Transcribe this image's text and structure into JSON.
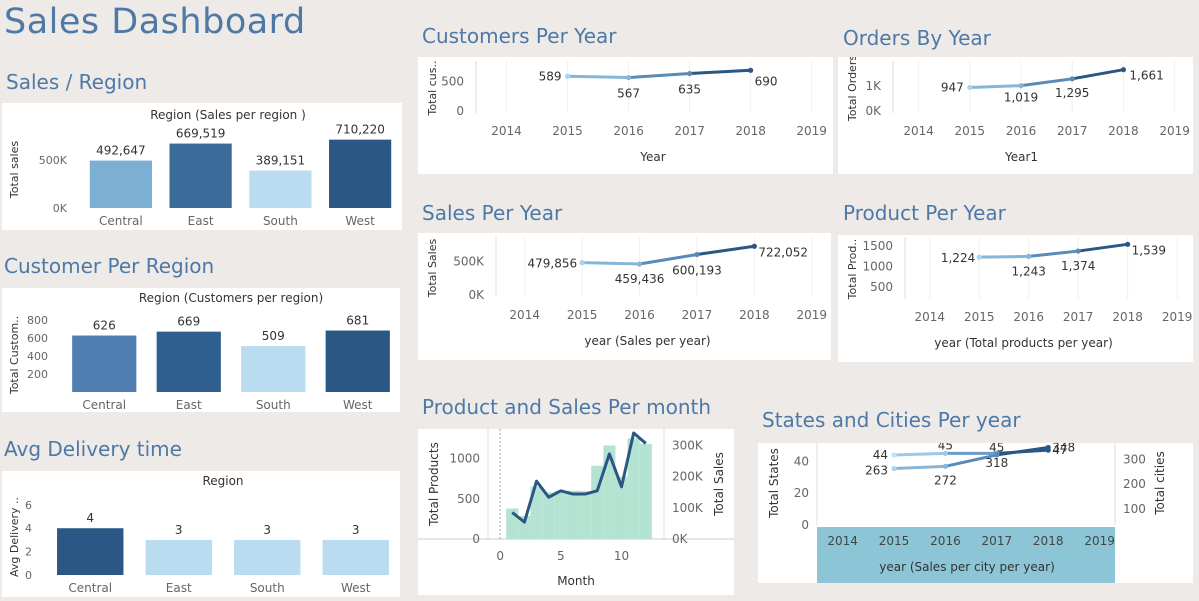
{
  "dashboard_title": "Sales Dashboard",
  "sections": {
    "sales_region": "Sales / Region",
    "customer_region": "Customer Per Region",
    "avg_delivery": "Avg Delivery time",
    "customers_year": "Customers Per Year",
    "orders_year": "Orders By Year",
    "sales_year": "Sales Per Year",
    "product_year": "Product Per Year",
    "product_sales_month": "Product and Sales Per month",
    "states_cities": "States and Cities Per year"
  },
  "chart_data": [
    {
      "id": "sales_region",
      "type": "bar",
      "title": "Region (Sales per region )",
      "xlabel": "",
      "ylabel": "Total sales",
      "categories": [
        "Central",
        "East",
        "South",
        "West"
      ],
      "values": [
        492647,
        669519,
        389151,
        710220
      ],
      "labels": [
        "492,647",
        "669,519",
        "389,151",
        "710,220"
      ],
      "ylim": [
        0,
        800000
      ],
      "yticks": [
        0,
        500000
      ],
      "ytick_labels": [
        "0K",
        "500K"
      ],
      "colors": [
        "#7bafd4",
        "#3c6c9a",
        "#b9dcf0",
        "#2a5783"
      ]
    },
    {
      "id": "customer_region",
      "type": "bar",
      "title": "Region (Customers per region)",
      "xlabel": "",
      "ylabel": "Total Custom..",
      "categories": [
        "Central",
        "East",
        "South",
        "West"
      ],
      "values": [
        626,
        669,
        509,
        681
      ],
      "labels": [
        "626",
        "669",
        "509",
        "681"
      ],
      "ylim": [
        0,
        820
      ],
      "yticks": [
        200,
        400,
        600,
        800
      ],
      "ytick_labels": [
        "200",
        "400",
        "600",
        "800"
      ],
      "colors": [
        "#4e7fb0",
        "#2f5f8f",
        "#b9dcf0",
        "#2a5783"
      ]
    },
    {
      "id": "avg_delivery",
      "type": "bar",
      "title": "Region",
      "xlabel": "",
      "ylabel": "Avg Delivery ..",
      "categories": [
        "Central",
        "East",
        "South",
        "West"
      ],
      "values": [
        4,
        3,
        3,
        3
      ],
      "labels": [
        "4",
        "3",
        "3",
        "3"
      ],
      "ylim": [
        0,
        6.5
      ],
      "yticks": [
        0,
        2,
        4,
        6
      ],
      "ytick_labels": [
        "0",
        "2",
        "4",
        "6"
      ],
      "colors": [
        "#2a5783",
        "#b9dcf0",
        "#b9dcf0",
        "#b9dcf0"
      ]
    },
    {
      "id": "customers_year",
      "type": "line",
      "title": "",
      "xlabel": "Year",
      "ylabel": "Total cus..",
      "x": [
        2015,
        2016,
        2017,
        2018
      ],
      "values": [
        589,
        567,
        635,
        690
      ],
      "labels": [
        "589",
        "567",
        "635",
        "690"
      ],
      "xlim": [
        2013.5,
        2019.3
      ],
      "xticks": [
        2014,
        2015,
        2016,
        2017,
        2018,
        2019
      ],
      "ylim": [
        0,
        780
      ],
      "yticks": [
        0,
        500
      ],
      "ytick_labels": [
        "0",
        "500"
      ]
    },
    {
      "id": "orders_year",
      "type": "line",
      "title": "",
      "xlabel": "Year1",
      "ylabel": "Total Orders",
      "x": [
        2015,
        2016,
        2017,
        2018
      ],
      "values": [
        947,
        1019,
        1295,
        1661
      ],
      "labels": [
        "947",
        "1,019",
        "1,295",
        "1,661"
      ],
      "xlim": [
        2013.5,
        2019.3
      ],
      "xticks": [
        2014,
        2015,
        2016,
        2017,
        2018,
        2019
      ],
      "ylim": [
        0,
        1850
      ],
      "yticks": [
        0,
        1000
      ],
      "ytick_labels": [
        "0K",
        "1K"
      ]
    },
    {
      "id": "sales_year",
      "type": "line",
      "title": "",
      "xlabel": "year (Sales per year)",
      "ylabel": "Total Sales",
      "x": [
        2015,
        2016,
        2017,
        2018
      ],
      "values": [
        479856,
        459436,
        600193,
        722052
      ],
      "labels": [
        "479,856",
        "459,436",
        "600,193",
        "722,052"
      ],
      "xlim": [
        2013.5,
        2019.3
      ],
      "xticks": [
        2014,
        2015,
        2016,
        2017,
        2018,
        2019
      ],
      "ylim": [
        0,
        800000
      ],
      "yticks": [
        0,
        500000
      ],
      "ytick_labels": [
        "0K",
        "500K"
      ]
    },
    {
      "id": "product_year",
      "type": "line",
      "title": "",
      "xlabel": "year (Total products per year)",
      "ylabel": "Total Prod..",
      "x": [
        2015,
        2016,
        2017,
        2018
      ],
      "values": [
        1224,
        1243,
        1374,
        1539
      ],
      "labels": [
        "1,224",
        "1,243",
        "1,374",
        "1,539"
      ],
      "xlim": [
        2013.5,
        2019.3
      ],
      "xticks": [
        2014,
        2015,
        2016,
        2017,
        2018,
        2019
      ],
      "ylim": [
        250,
        1620
      ],
      "yticks": [
        500,
        1000,
        1500
      ],
      "ytick_labels": [
        "500",
        "1000",
        "1500"
      ]
    },
    {
      "id": "product_sales_month",
      "type": "bar",
      "title": "",
      "xlabel": "Month",
      "ylabel": "Total Products",
      "ylabel_right": "Total Sales",
      "x": [
        1,
        2,
        3,
        4,
        5,
        6,
        7,
        8,
        9,
        10,
        11,
        12
      ],
      "series": [
        {
          "name": "Total Sales",
          "type": "bar",
          "axis": "right",
          "values": [
            98000,
            74000,
            168000,
            150000,
            155000,
            155000,
            154000,
            235000,
            300000,
            200000,
            323000,
            305000
          ]
        },
        {
          "name": "Total Products",
          "type": "line",
          "axis": "left",
          "values": [
            330,
            210,
            720,
            520,
            600,
            560,
            560,
            600,
            1060,
            650,
            1320,
            1190
          ]
        }
      ],
      "xlim": [
        -1,
        13.5
      ],
      "xticks": [
        0,
        5,
        10
      ],
      "ylim": [
        0,
        1320
      ],
      "yticks": [
        0,
        500,
        1000
      ],
      "ytick_labels": [
        "0",
        "500",
        "1000"
      ],
      "ylim_right": [
        0,
        340000
      ],
      "yticks_right": [
        0,
        100000,
        200000,
        300000
      ],
      "ytick_labels_right": [
        "0K",
        "100K",
        "200K",
        "300K"
      ]
    },
    {
      "id": "states_cities",
      "type": "line",
      "title": "",
      "xlabel": "year (Sales per city per year)",
      "ylabel": "Total States",
      "ylabel_right": "Total cities",
      "x": [
        2015,
        2016,
        2017,
        2018
      ],
      "series": [
        {
          "name": "Total States",
          "axis": "left",
          "values": [
            44,
            45,
            45,
            47
          ],
          "labels": [
            "44",
            "45",
            "45",
            "47"
          ]
        },
        {
          "name": "Total cities",
          "axis": "right",
          "values": [
            263,
            272,
            318,
            348
          ],
          "labels": [
            "263",
            "272",
            "318",
            "348"
          ]
        }
      ],
      "xlim": [
        2013.5,
        2019.3
      ],
      "xticks": [
        2014,
        2015,
        2016,
        2017,
        2018,
        2019
      ],
      "ylim": [
        0,
        49
      ],
      "yticks": [
        0,
        20,
        40
      ],
      "ytick_labels": [
        "0",
        "20",
        "40"
      ],
      "ylim_right": [
        35,
        350
      ],
      "yticks_right": [
        100,
        200,
        300
      ],
      "ytick_labels_right": [
        "100",
        "200",
        "300"
      ]
    }
  ]
}
